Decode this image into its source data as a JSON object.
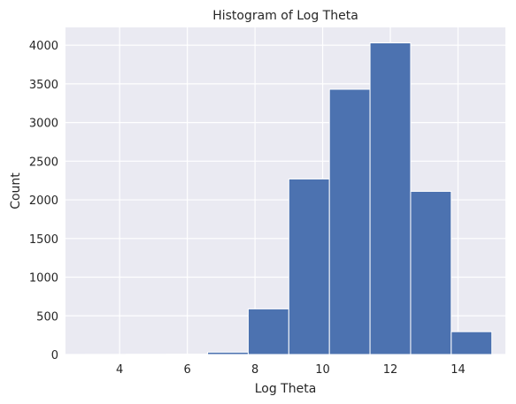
{
  "chart_data": {
    "type": "bar",
    "title": "Histogram of Log Theta",
    "xlabel": "Log Theta",
    "ylabel": "Count",
    "xlim": [
      2.4,
      15.4
    ],
    "ylim": [
      0,
      4230
    ],
    "xticks": [
      4,
      6,
      8,
      10,
      12,
      14
    ],
    "yticks": [
      0,
      500,
      1000,
      1500,
      2000,
      2500,
      3000,
      3500,
      4000
    ],
    "grid": true,
    "bins": [
      {
        "x0": 3.0,
        "x1": 4.2,
        "count": 1
      },
      {
        "x0": 4.2,
        "x1": 5.4,
        "count": 2
      },
      {
        "x0": 5.4,
        "x1": 6.6,
        "count": 5
      },
      {
        "x0": 6.6,
        "x1": 7.8,
        "count": 30
      },
      {
        "x0": 7.8,
        "x1": 9.0,
        "count": 590
      },
      {
        "x0": 9.0,
        "x1": 10.2,
        "count": 2270
      },
      {
        "x0": 10.2,
        "x1": 11.4,
        "count": 3430
      },
      {
        "x0": 11.4,
        "x1": 12.6,
        "count": 4030
      },
      {
        "x0": 12.6,
        "x1": 13.8,
        "count": 2110
      },
      {
        "x0": 13.8,
        "x1": 15.0,
        "count": 295
      }
    ],
    "colors": {
      "bar": "#4c72b0",
      "background": "#eaeaf2",
      "grid": "#ffffff"
    }
  }
}
